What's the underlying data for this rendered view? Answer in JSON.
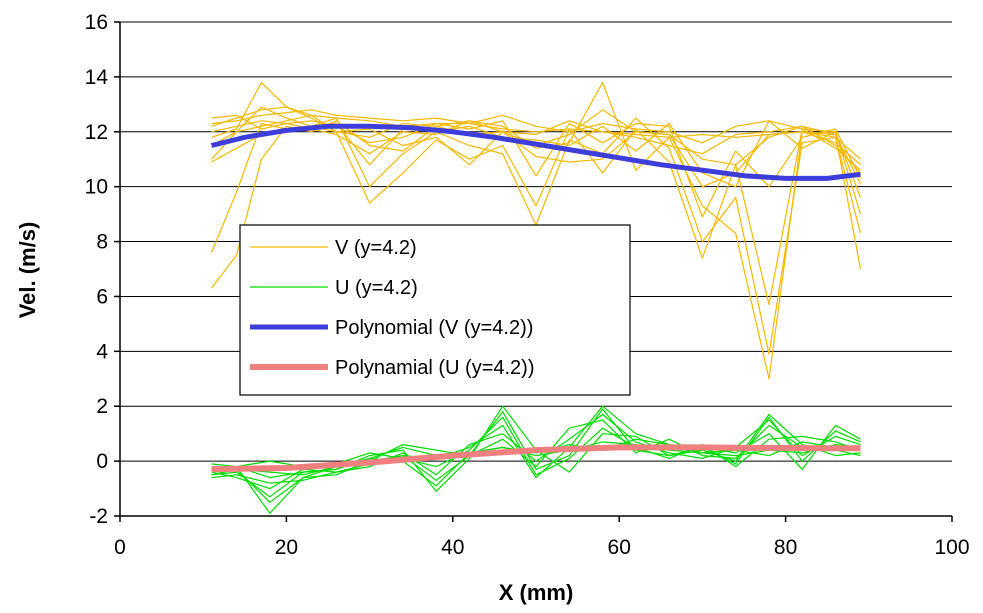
{
  "chart_data": {
    "type": "line",
    "xlabel": "X (mm)",
    "ylabel": "Vel. (m/s)",
    "xlim": [
      0,
      100
    ],
    "ylim": [
      -2,
      16
    ],
    "x_ticks": [
      0,
      20,
      40,
      60,
      80,
      100
    ],
    "y_ticks": [
      -2,
      0,
      2,
      4,
      6,
      8,
      10,
      12,
      14,
      16
    ],
    "y_gridlines": true,
    "legend_position": "center-left",
    "colors": {
      "V": "#f5b800",
      "U": "#00dd00",
      "poly_V": "#3d3ddb",
      "poly_U": "#f08080"
    },
    "series": [
      {
        "name": "V (y=4.2)",
        "style": "thin-multi-trace",
        "traces": [
          {
            "x": [
              11,
              14,
              17,
              20,
              23,
              26,
              30,
              34,
              38,
              42,
              46,
              50,
              54,
              58,
              62,
              66,
              70,
              74,
              78,
              82,
              86,
              89
            ],
            "y": [
              12.2,
              12.5,
              12.8,
              12.9,
              12.6,
              12.5,
              12.4,
              12.2,
              12.3,
              12.3,
              12.1,
              12.0,
              12.1,
              12.0,
              11.9,
              11.8,
              11.9,
              11.8,
              11.9,
              12.0,
              11.8,
              11.0
            ]
          },
          {
            "x": [
              11,
              14,
              17,
              20,
              23,
              26,
              30,
              34,
              38,
              42,
              46,
              50,
              54,
              58,
              62,
              66,
              70,
              74,
              78,
              82,
              86,
              89
            ],
            "y": [
              11.8,
              12.1,
              13.8,
              12.9,
              12.5,
              12.0,
              11.8,
              12.3,
              12.2,
              11.9,
              12.0,
              11.5,
              11.9,
              12.8,
              12.0,
              11.9,
              11.0,
              10.8,
              11.8,
              12.2,
              11.5,
              10.5
            ]
          },
          {
            "x": [
              11,
              14,
              17,
              20,
              23,
              26,
              30,
              34,
              38,
              42,
              46,
              50,
              54,
              58,
              62,
              66,
              70,
              74,
              78,
              82,
              86,
              89
            ],
            "y": [
              6.3,
              7.5,
              11.0,
              12.2,
              12.0,
              12.4,
              11.5,
              11.3,
              12.2,
              12.4,
              12.0,
              11.1,
              10.9,
              11.0,
              12.0,
              11.9,
              10.0,
              10.5,
              11.9,
              12.0,
              11.6,
              10.8
            ]
          },
          {
            "x": [
              11,
              14,
              17,
              20,
              23,
              26,
              30,
              34,
              38,
              42,
              46,
              50,
              54,
              58,
              62,
              66,
              70,
              74,
              78,
              82,
              86,
              89
            ],
            "y": [
              12.0,
              12.2,
              12.4,
              12.3,
              12.1,
              11.9,
              11.2,
              12.0,
              11.9,
              12.4,
              12.2,
              11.4,
              11.6,
              13.8,
              10.6,
              11.8,
              9.3,
              8.3,
              3.0,
              12.0,
              11.9,
              7.0
            ]
          },
          {
            "x": [
              11,
              14,
              17,
              20,
              23,
              26,
              30,
              34,
              38,
              42,
              46,
              50,
              54,
              58,
              62,
              66,
              70,
              74,
              78,
              82,
              86,
              89
            ],
            "y": [
              7.6,
              9.8,
              12.3,
              12.1,
              12.2,
              12.5,
              10.0,
              11.2,
              12.0,
              11.5,
              11.2,
              8.6,
              11.7,
              11.2,
              12.5,
              11.4,
              8.0,
              9.6,
              3.9,
              11.6,
              11.8,
              8.3
            ]
          },
          {
            "x": [
              11,
              14,
              17,
              20,
              23,
              26,
              30,
              34,
              38,
              42,
              46,
              50,
              54,
              58,
              62,
              66,
              70,
              74,
              78,
              82,
              86,
              89
            ],
            "y": [
              11.0,
              12.0,
              12.2,
              12.4,
              12.6,
              12.0,
              9.4,
              10.5,
              11.7,
              11.0,
              11.5,
              9.3,
              12.1,
              10.5,
              12.1,
              10.9,
              7.4,
              10.8,
              5.7,
              12.1,
              12.0,
              9.0
            ]
          },
          {
            "x": [
              11,
              14,
              17,
              20,
              23,
              26,
              30,
              34,
              38,
              42,
              46,
              50,
              54,
              58,
              62,
              66,
              70,
              74,
              78,
              82,
              86,
              89
            ],
            "y": [
              12.5,
              12.6,
              12.1,
              12.3,
              12.4,
              12.2,
              11.6,
              11.8,
              12.3,
              12.1,
              12.4,
              10.4,
              12.3,
              11.6,
              12.3,
              12.2,
              8.9,
              11.3,
              10.0,
              11.8,
              12.1,
              10.3
            ]
          },
          {
            "x": [
              11,
              14,
              17,
              20,
              23,
              26,
              30,
              34,
              38,
              42,
              46,
              50,
              54,
              58,
              62,
              66,
              70,
              74,
              78,
              82,
              86,
              89
            ],
            "y": [
              10.9,
              11.4,
              11.9,
              12.0,
              12.2,
              12.3,
              10.8,
              12.1,
              12.0,
              12.2,
              11.8,
              11.7,
              11.5,
              12.2,
              11.3,
              12.3,
              10.5,
              10.0,
              12.4,
              11.4,
              12.0,
              9.6
            ]
          },
          {
            "x": [
              11,
              14,
              17,
              20,
              23,
              26,
              30,
              34,
              38,
              42,
              46,
              50,
              54,
              58,
              62,
              66,
              70,
              74,
              78,
              82,
              86,
              89
            ],
            "y": [
              12.3,
              12.4,
              12.6,
              12.7,
              12.8,
              12.6,
              12.5,
              12.4,
              12.5,
              12.3,
              12.6,
              12.2,
              12.0,
              12.3,
              12.1,
              12.0,
              11.6,
              12.2,
              12.4,
              12.1,
              11.4,
              10.6
            ]
          },
          {
            "x": [
              11,
              14,
              17,
              20,
              23,
              26,
              30,
              34,
              38,
              42,
              46,
              50,
              54,
              58,
              62,
              66,
              70,
              74,
              78,
              82,
              86,
              89
            ],
            "y": [
              11.5,
              12.0,
              12.9,
              12.5,
              12.2,
              12.0,
              12.1,
              11.5,
              11.8,
              10.8,
              12.0,
              11.9,
              12.4,
              12.0,
              11.8,
              11.5,
              11.2,
              11.9,
              12.0,
              12.2,
              11.9,
              10.1
            ]
          }
        ]
      },
      {
        "name": "U (y=4.2)",
        "style": "thin-multi-trace",
        "traces": [
          {
            "x": [
              11,
              14,
              18,
              22,
              26,
              30,
              34,
              38,
              42,
              46,
              50,
              54,
              58,
              62,
              66,
              70,
              74,
              78,
              82,
              86,
              89
            ],
            "y": [
              -0.3,
              -0.2,
              -1.9,
              -0.6,
              -0.2,
              0.1,
              0.0,
              -0.9,
              0.3,
              0.5,
              0.2,
              0.4,
              0.7,
              0.6,
              0.4,
              0.3,
              0.2,
              0.4,
              0.3,
              0.6,
              0.5
            ]
          },
          {
            "x": [
              11,
              14,
              18,
              22,
              26,
              30,
              34,
              38,
              42,
              46,
              50,
              54,
              58,
              62,
              66,
              70,
              74,
              78,
              82,
              86,
              89
            ],
            "y": [
              -0.5,
              -0.4,
              -1.3,
              -0.4,
              -0.3,
              0.2,
              0.4,
              -1.1,
              0.1,
              2.0,
              0.4,
              -0.4,
              1.0,
              0.9,
              0.2,
              0.4,
              0.0,
              1.7,
              0.6,
              0.2,
              0.3
            ]
          },
          {
            "x": [
              11,
              14,
              18,
              22,
              26,
              30,
              34,
              38,
              42,
              46,
              50,
              54,
              58,
              62,
              66,
              70,
              74,
              78,
              82,
              86,
              89
            ],
            "y": [
              -0.6,
              -0.5,
              -0.8,
              -0.7,
              -0.4,
              -0.1,
              0.2,
              0.1,
              0.5,
              1.3,
              -0.6,
              0.5,
              2.0,
              1.0,
              0.6,
              0.5,
              0.3,
              1.0,
              -0.3,
              1.3,
              0.8
            ]
          },
          {
            "x": [
              11,
              14,
              18,
              22,
              26,
              30,
              34,
              38,
              42,
              46,
              50,
              54,
              58,
              62,
              66,
              70,
              74,
              78,
              82,
              86,
              89
            ],
            "y": [
              -0.2,
              -0.3,
              -0.4,
              -0.5,
              -0.2,
              0.0,
              0.6,
              0.4,
              0.2,
              0.8,
              -0.2,
              1.2,
              1.5,
              0.3,
              0.8,
              0.2,
              0.1,
              1.3,
              0.5,
              0.4,
              0.2
            ]
          },
          {
            "x": [
              11,
              14,
              18,
              22,
              26,
              30,
              34,
              38,
              42,
              46,
              50,
              54,
              58,
              62,
              66,
              70,
              74,
              78,
              82,
              86,
              89
            ],
            "y": [
              -0.3,
              -0.2,
              0.0,
              -0.2,
              -0.1,
              0.3,
              0.1,
              -0.2,
              0.4,
              1.6,
              -0.5,
              0.1,
              1.2,
              0.5,
              0.1,
              0.6,
              -0.2,
              0.8,
              0.9,
              0.7,
              0.4
            ]
          },
          {
            "x": [
              11,
              14,
              18,
              22,
              26,
              30,
              34,
              38,
              42,
              46,
              50,
              54,
              58,
              62,
              66,
              70,
              74,
              78,
              82,
              86,
              89
            ],
            "y": [
              -0.4,
              -0.6,
              -1.0,
              -0.3,
              -0.4,
              -0.2,
              0.3,
              -0.5,
              0.6,
              1.0,
              0.0,
              0.8,
              1.7,
              0.7,
              0.3,
              0.1,
              0.5,
              1.5,
              0.2,
              0.9,
              0.6
            ]
          },
          {
            "x": [
              11,
              14,
              18,
              22,
              26,
              30,
              34,
              38,
              42,
              46,
              50,
              54,
              58,
              62,
              66,
              70,
              74,
              78,
              82,
              86,
              89
            ],
            "y": [
              -0.1,
              -0.2,
              -0.6,
              -0.4,
              -0.3,
              0.1,
              0.5,
              0.2,
              0.3,
              0.5,
              0.3,
              0.6,
              0.4,
              0.8,
              0.6,
              0.3,
              0.4,
              0.2,
              0.7,
              0.5,
              0.4
            ]
          },
          {
            "x": [
              11,
              14,
              18,
              22,
              26,
              30,
              34,
              38,
              42,
              46,
              50,
              54,
              58,
              62,
              66,
              70,
              74,
              78,
              82,
              86,
              89
            ],
            "y": [
              -0.5,
              -0.3,
              -1.5,
              -0.6,
              -0.5,
              0.0,
              0.2,
              -0.7,
              0.2,
              1.8,
              -0.3,
              0.2,
              1.9,
              0.4,
              0.2,
              0.5,
              -0.1,
              1.6,
              0.0,
              1.1,
              0.7
            ]
          }
        ]
      },
      {
        "name": "Polynomial (V (y=4.2))",
        "style": "thick-fit",
        "x": [
          11,
          15,
          20,
          25,
          30,
          35,
          40,
          45,
          50,
          55,
          60,
          65,
          70,
          75,
          80,
          85,
          89
        ],
        "y": [
          11.5,
          11.8,
          12.05,
          12.2,
          12.2,
          12.15,
          12.0,
          11.8,
          11.55,
          11.3,
          11.05,
          10.8,
          10.6,
          10.4,
          10.3,
          10.3,
          10.45
        ]
      },
      {
        "name": "Polynamial (U (y=4.2))",
        "style": "thick-fit",
        "x": [
          11,
          20,
          30,
          40,
          50,
          55,
          60,
          65,
          70,
          75,
          80,
          85,
          89
        ],
        "y": [
          -0.3,
          -0.25,
          -0.05,
          0.2,
          0.4,
          0.45,
          0.5,
          0.5,
          0.5,
          0.48,
          0.48,
          0.47,
          0.47
        ]
      }
    ]
  }
}
